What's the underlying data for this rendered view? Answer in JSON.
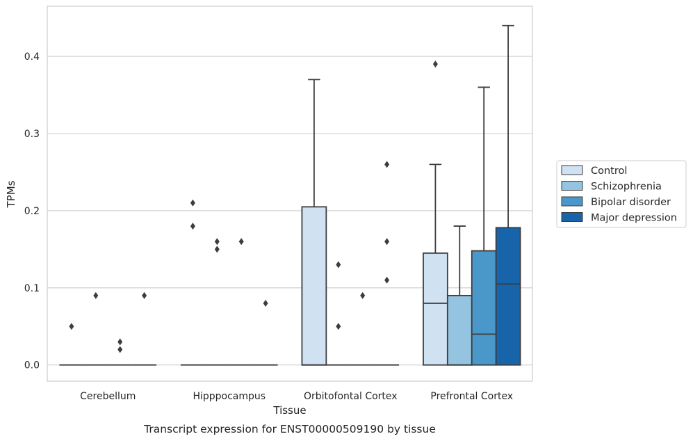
{
  "chart_data": {
    "type": "box",
    "caption": "Transcript expression for ENST00000509190 by tissue",
    "xlabel": "Tissue",
    "ylabel": "TPMs",
    "ylim": [
      -0.021,
      0.465
    ],
    "yticks": [
      0.0,
      0.1,
      0.2,
      0.3,
      0.4
    ],
    "ytick_labels": [
      "0.0",
      "0.1",
      "0.2",
      "0.3",
      "0.4"
    ],
    "grid": "horizontal",
    "legend_position": "right",
    "categories": [
      "Cerebellum",
      "Hipppocampus",
      "Orbitofontal Cortex",
      "Prefrontal Cortex"
    ],
    "series": [
      {
        "name": "Control",
        "color": "#d0e1f2",
        "boxes": [
          {
            "q1": 0,
            "median": 0,
            "q3": 0,
            "whisker_low": 0,
            "whisker_high": 0,
            "outliers": [
              0.05
            ]
          },
          {
            "q1": 0,
            "median": 0,
            "q3": 0,
            "whisker_low": 0,
            "whisker_high": 0,
            "outliers": [
              0.18,
              0.21
            ]
          },
          {
            "q1": 0,
            "median": 0,
            "q3": 0.205,
            "whisker_low": 0,
            "whisker_high": 0.37,
            "outliers": []
          },
          {
            "q1": 0,
            "median": 0.08,
            "q3": 0.145,
            "whisker_low": 0,
            "whisker_high": 0.26,
            "outliers": [
              0.39
            ]
          }
        ]
      },
      {
        "name": "Schizophrenia",
        "color": "#94c4df",
        "boxes": [
          {
            "q1": 0,
            "median": 0,
            "q3": 0,
            "whisker_low": 0,
            "whisker_high": 0,
            "outliers": [
              0.09
            ]
          },
          {
            "q1": 0,
            "median": 0,
            "q3": 0,
            "whisker_low": 0,
            "whisker_high": 0,
            "outliers": [
              0.15,
              0.16
            ]
          },
          {
            "q1": 0,
            "median": 0,
            "q3": 0,
            "whisker_low": 0,
            "whisker_high": 0,
            "outliers": [
              0.05,
              0.13
            ]
          },
          {
            "q1": 0,
            "median": 0,
            "q3": 0.09,
            "whisker_low": 0,
            "whisker_high": 0.18,
            "outliers": []
          }
        ]
      },
      {
        "name": "Bipolar disorder",
        "color": "#4a98c9",
        "boxes": [
          {
            "q1": 0,
            "median": 0,
            "q3": 0,
            "whisker_low": 0,
            "whisker_high": 0,
            "outliers": [
              0.02,
              0.03
            ]
          },
          {
            "q1": 0,
            "median": 0,
            "q3": 0,
            "whisker_low": 0,
            "whisker_high": 0,
            "outliers": [
              0.16
            ]
          },
          {
            "q1": 0,
            "median": 0,
            "q3": 0,
            "whisker_low": 0,
            "whisker_high": 0,
            "outliers": [
              0.09
            ]
          },
          {
            "q1": 0,
            "median": 0.04,
            "q3": 0.148,
            "whisker_low": 0,
            "whisker_high": 0.36,
            "outliers": []
          }
        ]
      },
      {
        "name": "Major depression",
        "color": "#1764ab",
        "boxes": [
          {
            "q1": 0,
            "median": 0,
            "q3": 0,
            "whisker_low": 0,
            "whisker_high": 0,
            "outliers": [
              0.09
            ]
          },
          {
            "q1": 0,
            "median": 0,
            "q3": 0,
            "whisker_low": 0,
            "whisker_high": 0,
            "outliers": [
              0.08
            ]
          },
          {
            "q1": 0,
            "median": 0,
            "q3": 0,
            "whisker_low": 0,
            "whisker_high": 0,
            "outliers": [
              0.11,
              0.16,
              0.26
            ]
          },
          {
            "q1": 0,
            "median": 0.105,
            "q3": 0.178,
            "whisker_low": 0,
            "whisker_high": 0.44,
            "outliers": []
          }
        ]
      }
    ]
  }
}
